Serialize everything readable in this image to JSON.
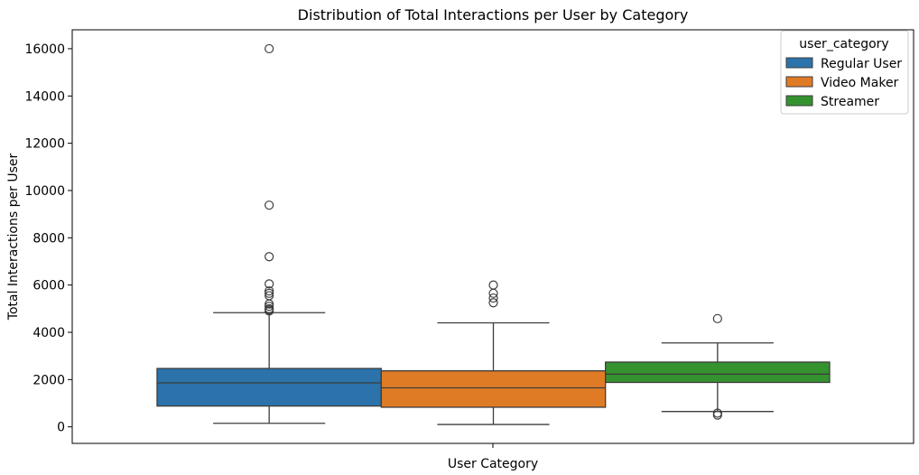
{
  "chart_data": {
    "type": "box",
    "title": "Distribution of Total Interactions per User by Category",
    "xlabel": "User Category",
    "ylabel": "Total Interactions per User",
    "ylim": [
      -700,
      16800
    ],
    "yticks": [
      0,
      2000,
      4000,
      6000,
      8000,
      10000,
      12000,
      14000,
      16000
    ],
    "ytick_labels": [
      "0",
      "2000",
      "4000",
      "6000",
      "8000",
      "10000",
      "12000",
      "14000",
      "16000"
    ],
    "legend": {
      "title": "user_category",
      "position": "top-right"
    },
    "series": [
      {
        "name": "Regular User",
        "color": "#2b73aa",
        "whisker_low": 150,
        "q1": 880,
        "median": 1860,
        "q3": 2470,
        "whisker_high": 4830,
        "outliers": [
          4900,
          4950,
          5000,
          5100,
          5200,
          5550,
          5650,
          5750,
          6050,
          7200,
          9380,
          16000
        ]
      },
      {
        "name": "Video Maker",
        "color": "#e07b25",
        "whisker_low": 100,
        "q1": 830,
        "median": 1650,
        "q3": 2370,
        "whisker_high": 4400,
        "outliers": [
          5250,
          5450,
          5650,
          6000
        ]
      },
      {
        "name": "Streamer",
        "color": "#34932f",
        "whisker_low": 650,
        "q1": 1880,
        "median": 2230,
        "q3": 2740,
        "whisker_high": 3550,
        "outliers": [
          500,
          580,
          4580
        ]
      }
    ]
  }
}
